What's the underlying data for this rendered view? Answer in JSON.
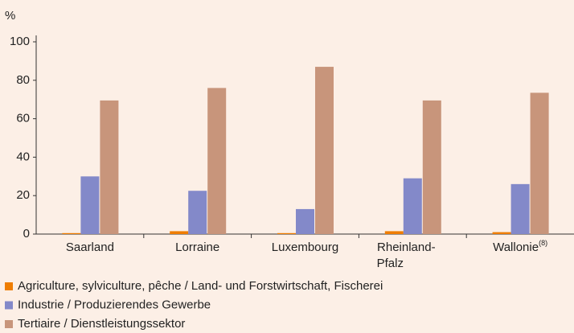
{
  "chart_data": {
    "type": "bar",
    "y_unit": "%",
    "categories": [
      "Saarland",
      "Lorraine",
      "Luxembourg",
      "Rheinland-Pfalz",
      "Wallonie(8)"
    ],
    "series": [
      {
        "name": "Agriculture, sylviculture, pêche / Land- und Forstwirtschaft, Fischerei",
        "color": "#ef7d00",
        "values": [
          0.5,
          1.5,
          0.5,
          1.5,
          1
        ]
      },
      {
        "name": "Industrie / Produzierendes Gewerbe",
        "color": "#8389c9",
        "values": [
          30,
          22.5,
          13,
          29,
          26
        ]
      },
      {
        "name": "Tertiaire / Dienstleistungssektor",
        "color": "#c8957b",
        "values": [
          69.5,
          76,
          87,
          69.5,
          73.5
        ]
      }
    ],
    "ylim": [
      0,
      100
    ],
    "yticks": [
      0,
      20,
      40,
      60,
      80,
      100
    ]
  }
}
